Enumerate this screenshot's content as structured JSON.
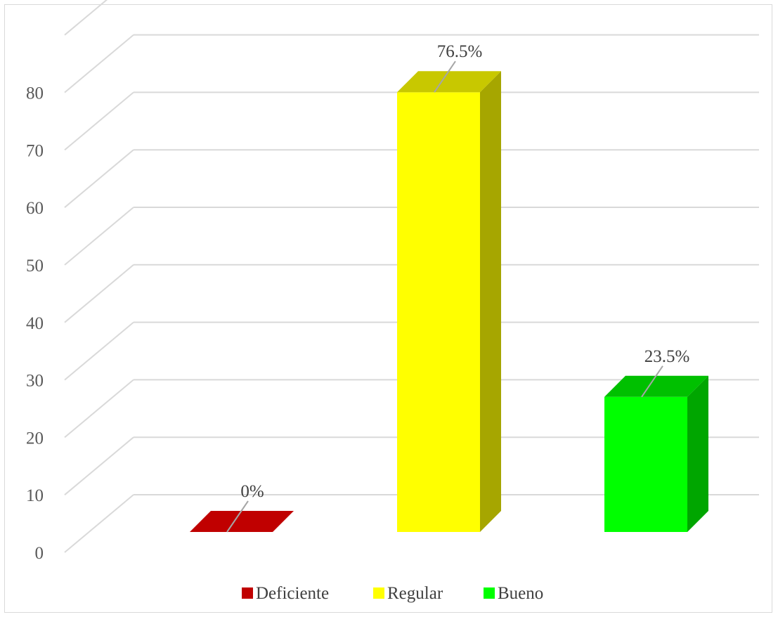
{
  "chart_data": {
    "type": "bar",
    "style": "3d-column",
    "categories": [
      "Deficiente",
      "Regular",
      "Bueno"
    ],
    "values": [
      0,
      76.5,
      23.5
    ],
    "data_labels": [
      "0%",
      "76.5%",
      "23.5%"
    ],
    "colors": {
      "Deficiente": {
        "front": "#c00000",
        "side": "#a00000",
        "top": "#c00000"
      },
      "Regular": {
        "front": "#ffff00",
        "side": "#a6a600",
        "top": "#c8c800"
      },
      "Bueno": {
        "front": "#00ff00",
        "side": "#00a600",
        "top": "#00c000"
      }
    },
    "y_ticks": [
      "0",
      "10",
      "20",
      "30",
      "40",
      "50",
      "60",
      "70",
      "80"
    ],
    "ylim": [
      0,
      80
    ],
    "grid": true,
    "legend_position": "bottom",
    "title": "",
    "xlabel": "",
    "ylabel": ""
  }
}
